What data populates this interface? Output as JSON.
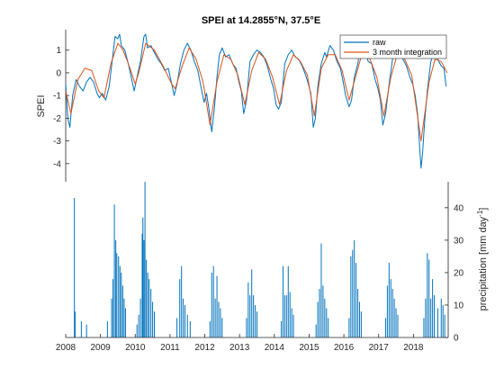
{
  "chart_data": {
    "type": "line",
    "title": "SPEI at 14.2855°N, 37.5°E",
    "x_ticks": [
      "2008",
      "2009",
      "2010",
      "2011",
      "2012",
      "2013",
      "2014",
      "2015",
      "2016",
      "2017",
      "2018"
    ],
    "x_range": [
      2008,
      2019
    ],
    "spei": {
      "ylabel": "SPEI",
      "ylim": [
        -4.8,
        1.9
      ],
      "yticks": [
        -4,
        -3,
        -2,
        -1,
        0,
        1
      ],
      "legend_position": "top-right",
      "series": [
        {
          "name": "raw",
          "color": "#0072BD",
          "points": [
            [
              2008.0,
              -0.5
            ],
            [
              2008.06,
              -2.0
            ],
            [
              2008.12,
              -2.4
            ],
            [
              2008.2,
              -1.0
            ],
            [
              2008.3,
              -0.3
            ],
            [
              2008.4,
              -0.6
            ],
            [
              2008.5,
              -0.8
            ],
            [
              2008.6,
              -0.4
            ],
            [
              2008.7,
              -0.2
            ],
            [
              2008.8,
              -0.4
            ],
            [
              2008.9,
              -0.9
            ],
            [
              2008.97,
              -1.1
            ],
            [
              2009.05,
              -0.9
            ],
            [
              2009.15,
              -1.2
            ],
            [
              2009.25,
              -0.6
            ],
            [
              2009.35,
              0.7
            ],
            [
              2009.42,
              1.6
            ],
            [
              2009.5,
              1.5
            ],
            [
              2009.55,
              1.7
            ],
            [
              2009.6,
              1.2
            ],
            [
              2009.7,
              1.0
            ],
            [
              2009.8,
              0.4
            ],
            [
              2009.9,
              -0.3
            ],
            [
              2009.97,
              -0.8
            ],
            [
              2010.05,
              -0.2
            ],
            [
              2010.15,
              0.5
            ],
            [
              2010.25,
              1.6
            ],
            [
              2010.3,
              1.7
            ],
            [
              2010.35,
              1.1
            ],
            [
              2010.45,
              1.2
            ],
            [
              2010.55,
              0.9
            ],
            [
              2010.65,
              0.6
            ],
            [
              2010.75,
              0.4
            ],
            [
              2010.85,
              0.1
            ],
            [
              2010.95,
              0.2
            ],
            [
              2011.05,
              -0.5
            ],
            [
              2011.12,
              -1.0
            ],
            [
              2011.2,
              -0.5
            ],
            [
              2011.3,
              0.4
            ],
            [
              2011.4,
              1.0
            ],
            [
              2011.5,
              1.3
            ],
            [
              2011.6,
              1.0
            ],
            [
              2011.7,
              0.5
            ],
            [
              2011.8,
              0.1
            ],
            [
              2011.9,
              -0.7
            ],
            [
              2011.98,
              -1.3
            ],
            [
              2012.05,
              -0.9
            ],
            [
              2012.12,
              -1.6
            ],
            [
              2012.2,
              -2.6
            ],
            [
              2012.28,
              -1.5
            ],
            [
              2012.35,
              -0.2
            ],
            [
              2012.42,
              0.8
            ],
            [
              2012.5,
              1.1
            ],
            [
              2012.6,
              0.7
            ],
            [
              2012.7,
              0.8
            ],
            [
              2012.8,
              0.4
            ],
            [
              2012.9,
              0.2
            ],
            [
              2012.98,
              -0.4
            ],
            [
              2013.05,
              -0.8
            ],
            [
              2013.12,
              -1.8
            ],
            [
              2013.2,
              -1.2
            ],
            [
              2013.3,
              0.5
            ],
            [
              2013.4,
              0.8
            ],
            [
              2013.5,
              1.0
            ],
            [
              2013.6,
              0.9
            ],
            [
              2013.7,
              0.7
            ],
            [
              2013.8,
              0.3
            ],
            [
              2013.9,
              -0.3
            ],
            [
              2013.98,
              -0.7
            ],
            [
              2014.05,
              -1.4
            ],
            [
              2014.12,
              -1.6
            ],
            [
              2014.2,
              -1.3
            ],
            [
              2014.3,
              0.4
            ],
            [
              2014.4,
              0.8
            ],
            [
              2014.5,
              1.0
            ],
            [
              2014.6,
              0.7
            ],
            [
              2014.7,
              0.6
            ],
            [
              2014.8,
              0.3
            ],
            [
              2014.9,
              -0.1
            ],
            [
              2014.98,
              -0.5
            ],
            [
              2015.05,
              -0.9
            ],
            [
              2015.12,
              -2.4
            ],
            [
              2015.18,
              -2.0
            ],
            [
              2015.25,
              -0.6
            ],
            [
              2015.35,
              0.4
            ],
            [
              2015.45,
              0.9
            ],
            [
              2015.5,
              0.7
            ],
            [
              2015.6,
              1.2
            ],
            [
              2015.7,
              1.0
            ],
            [
              2015.8,
              0.5
            ],
            [
              2015.9,
              0.2
            ],
            [
              2015.98,
              -0.4
            ],
            [
              2016.05,
              -1.0
            ],
            [
              2016.15,
              -1.5
            ],
            [
              2016.22,
              -1.2
            ],
            [
              2016.3,
              -0.2
            ],
            [
              2016.4,
              0.4
            ],
            [
              2016.5,
              1.4
            ],
            [
              2016.6,
              1.0
            ],
            [
              2016.7,
              0.5
            ],
            [
              2016.8,
              0.4
            ],
            [
              2016.9,
              -0.3
            ],
            [
              2016.98,
              -0.7
            ],
            [
              2017.05,
              -1.2
            ],
            [
              2017.12,
              -2.3
            ],
            [
              2017.2,
              -1.8
            ],
            [
              2017.3,
              -0.5
            ],
            [
              2017.4,
              0.6
            ],
            [
              2017.5,
              1.2
            ],
            [
              2017.6,
              0.9
            ],
            [
              2017.7,
              0.6
            ],
            [
              2017.8,
              0.3
            ],
            [
              2017.9,
              -0.2
            ],
            [
              2017.98,
              -0.5
            ],
            [
              2018.05,
              -1.0
            ],
            [
              2018.12,
              -1.8
            ],
            [
              2018.18,
              -3.3
            ],
            [
              2018.22,
              -4.2
            ],
            [
              2018.26,
              -3.6
            ],
            [
              2018.32,
              -2.2
            ],
            [
              2018.4,
              -0.8
            ],
            [
              2018.5,
              0.5
            ],
            [
              2018.6,
              0.9
            ],
            [
              2018.7,
              0.6
            ],
            [
              2018.8,
              0.3
            ],
            [
              2018.88,
              0.2
            ],
            [
              2018.94,
              -0.6
            ]
          ]
        },
        {
          "name": "3 month integration",
          "color": "#D95319",
          "points": [
            [
              2008.0,
              -0.8
            ],
            [
              2008.15,
              -1.8
            ],
            [
              2008.35,
              -0.3
            ],
            [
              2008.55,
              0.2
            ],
            [
              2008.75,
              0.1
            ],
            [
              2008.95,
              -0.8
            ],
            [
              2009.1,
              -1.1
            ],
            [
              2009.3,
              0.4
            ],
            [
              2009.5,
              1.3
            ],
            [
              2009.65,
              1.0
            ],
            [
              2009.85,
              0.2
            ],
            [
              2010.0,
              -0.5
            ],
            [
              2010.1,
              0.0
            ],
            [
              2010.3,
              1.3
            ],
            [
              2010.55,
              1.0
            ],
            [
              2010.8,
              0.3
            ],
            [
              2011.05,
              -0.5
            ],
            [
              2011.15,
              -0.7
            ],
            [
              2011.35,
              0.3
            ],
            [
              2011.55,
              1.1
            ],
            [
              2011.75,
              0.6
            ],
            [
              2011.95,
              -0.4
            ],
            [
              2012.15,
              -2.3
            ],
            [
              2012.35,
              -0.4
            ],
            [
              2012.55,
              0.8
            ],
            [
              2012.75,
              0.6
            ],
            [
              2012.95,
              -0.1
            ],
            [
              2013.15,
              -1.4
            ],
            [
              2013.35,
              0.1
            ],
            [
              2013.55,
              0.9
            ],
            [
              2013.75,
              0.6
            ],
            [
              2013.95,
              -0.2
            ],
            [
              2014.15,
              -1.4
            ],
            [
              2014.35,
              0.1
            ],
            [
              2014.55,
              0.8
            ],
            [
              2014.75,
              0.5
            ],
            [
              2014.95,
              -0.1
            ],
            [
              2015.15,
              -1.9
            ],
            [
              2015.35,
              0.2
            ],
            [
              2015.55,
              0.8
            ],
            [
              2015.75,
              0.8
            ],
            [
              2015.95,
              0.1
            ],
            [
              2016.15,
              -1.2
            ],
            [
              2016.35,
              -0.1
            ],
            [
              2016.55,
              1.0
            ],
            [
              2016.75,
              0.6
            ],
            [
              2016.95,
              -0.2
            ],
            [
              2017.15,
              -1.9
            ],
            [
              2017.35,
              -0.2
            ],
            [
              2017.55,
              0.9
            ],
            [
              2017.75,
              0.6
            ],
            [
              2017.95,
              -0.1
            ],
            [
              2018.22,
              -3.0
            ],
            [
              2018.45,
              -0.4
            ],
            [
              2018.62,
              0.6
            ],
            [
              2018.8,
              0.5
            ],
            [
              2018.97,
              0.0
            ]
          ]
        }
      ]
    },
    "precipitation": {
      "ylabel": "precipitation [mm day",
      "ylabel_sup": "-1",
      "ylabel_close": "]",
      "ylim": [
        0,
        48
      ],
      "yticks": [
        0,
        10,
        20,
        30,
        40
      ],
      "color": "#0072BD",
      "events": [
        [
          2008.25,
          43
        ],
        [
          2008.27,
          8
        ],
        [
          2008.45,
          5
        ],
        [
          2008.6,
          4
        ],
        [
          2009.2,
          5
        ],
        [
          2009.32,
          12
        ],
        [
          2009.36,
          18
        ],
        [
          2009.4,
          41
        ],
        [
          2009.44,
          30
        ],
        [
          2009.47,
          26
        ],
        [
          2009.52,
          25
        ],
        [
          2009.56,
          22
        ],
        [
          2009.6,
          20
        ],
        [
          2009.64,
          16
        ],
        [
          2009.68,
          12
        ],
        [
          2009.72,
          9
        ],
        [
          2010.05,
          4
        ],
        [
          2010.1,
          7
        ],
        [
          2010.15,
          12
        ],
        [
          2010.2,
          32
        ],
        [
          2010.22,
          37
        ],
        [
          2010.25,
          30
        ],
        [
          2010.28,
          48
        ],
        [
          2010.32,
          24
        ],
        [
          2010.36,
          20
        ],
        [
          2010.4,
          18
        ],
        [
          2010.45,
          15
        ],
        [
          2010.5,
          11
        ],
        [
          2010.55,
          8
        ],
        [
          2011.2,
          6
        ],
        [
          2011.28,
          18
        ],
        [
          2011.33,
          22
        ],
        [
          2011.38,
          12
        ],
        [
          2011.43,
          10
        ],
        [
          2011.5,
          7
        ],
        [
          2011.58,
          5
        ],
        [
          2012.15,
          5
        ],
        [
          2012.2,
          20
        ],
        [
          2012.25,
          22
        ],
        [
          2012.3,
          12
        ],
        [
          2012.35,
          19
        ],
        [
          2012.4,
          11
        ],
        [
          2012.45,
          9
        ],
        [
          2012.5,
          6
        ],
        [
          2013.2,
          6
        ],
        [
          2013.25,
          17
        ],
        [
          2013.3,
          13
        ],
        [
          2013.35,
          21
        ],
        [
          2013.4,
          13
        ],
        [
          2013.45,
          10
        ],
        [
          2013.5,
          8
        ],
        [
          2014.2,
          5
        ],
        [
          2014.25,
          22
        ],
        [
          2014.3,
          13
        ],
        [
          2014.35,
          13
        ],
        [
          2014.4,
          22
        ],
        [
          2014.45,
          14
        ],
        [
          2014.5,
          9
        ],
        [
          2014.55,
          7
        ],
        [
          2015.2,
          4
        ],
        [
          2015.25,
          11
        ],
        [
          2015.3,
          15
        ],
        [
          2015.35,
          29
        ],
        [
          2015.4,
          16
        ],
        [
          2015.45,
          12
        ],
        [
          2015.5,
          9
        ],
        [
          2015.55,
          6
        ],
        [
          2016.15,
          6
        ],
        [
          2016.2,
          25
        ],
        [
          2016.25,
          27
        ],
        [
          2016.3,
          30
        ],
        [
          2016.35,
          23
        ],
        [
          2016.4,
          15
        ],
        [
          2016.45,
          11
        ],
        [
          2016.5,
          8
        ],
        [
          2017.2,
          6
        ],
        [
          2017.25,
          16
        ],
        [
          2017.3,
          23
        ],
        [
          2017.35,
          18
        ],
        [
          2017.4,
          15
        ],
        [
          2017.45,
          12
        ],
        [
          2017.5,
          9
        ],
        [
          2017.55,
          7
        ],
        [
          2018.3,
          6
        ],
        [
          2018.35,
          12
        ],
        [
          2018.4,
          26
        ],
        [
          2018.45,
          24
        ],
        [
          2018.5,
          12
        ],
        [
          2018.55,
          18
        ],
        [
          2018.6,
          13
        ],
        [
          2018.7,
          9
        ],
        [
          2018.8,
          12
        ],
        [
          2018.85,
          10
        ],
        [
          2018.9,
          7
        ]
      ]
    }
  }
}
